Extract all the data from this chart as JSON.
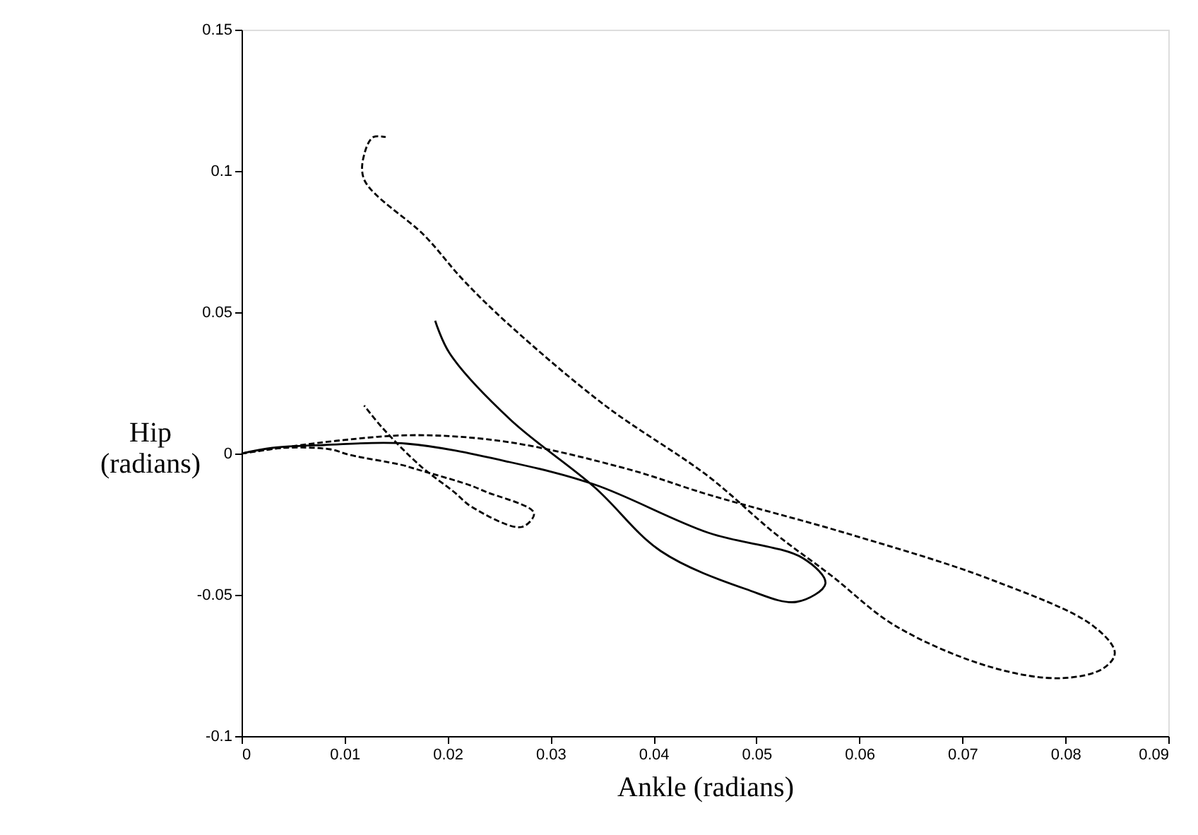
{
  "chart_data": {
    "type": "line",
    "xlabel": "Ankle (radians)",
    "ylabel": "Hip\n(radians)",
    "xlim": [
      0,
      0.09
    ],
    "ylim": [
      -0.1,
      0.15
    ],
    "xticks": [
      0,
      0.01,
      0.02,
      0.03,
      0.04,
      0.05,
      0.06,
      0.07,
      0.08,
      0.09
    ],
    "yticks": [
      -0.1,
      -0.05,
      0,
      0.05,
      0.1,
      0.15
    ],
    "grid": false,
    "marker": "none",
    "series": [
      {
        "color": "#000000",
        "line_style": "solid",
        "x": [
          0,
          0.003,
          0.008,
          0.016,
          0.026,
          0.0343,
          0.0453,
          0.0545,
          0.0567,
          0.0539,
          0.049,
          0.0407,
          0.0343,
          0.0261,
          0.0202,
          0.0188
        ],
        "values": [
          0,
          0.002,
          0.003,
          0.0035,
          -0.003,
          -0.011,
          -0.028,
          -0.037,
          -0.046,
          -0.0525,
          -0.048,
          -0.0345,
          -0.012,
          0.012,
          0.0355,
          0.047
        ]
      },
      {
        "color": "#000000",
        "line_style": "dashed",
        "x": [
          0,
          0.004,
          0.0086,
          0.0105,
          0.0155,
          0.0174,
          0.022,
          0.0237,
          0.0284,
          0.0272,
          0.0224,
          0.0206,
          0.0174,
          0.0137,
          0.0119
        ],
        "values": [
          0,
          0.002,
          0.0015,
          -0.0005,
          -0.004,
          -0.006,
          -0.011,
          -0.0135,
          -0.021,
          -0.026,
          -0.019,
          -0.0135,
          -0.0045,
          0.009,
          0.017
        ]
      },
      {
        "color": "#000000",
        "line_style": "dashed",
        "x": [
          0,
          0.0092,
          0.0169,
          0.026,
          0.0375,
          0.0453,
          0.059,
          0.0727,
          0.0827,
          0.0848,
          0.0837,
          0.0796,
          0.0727,
          0.0635,
          0.0572,
          0.0517,
          0.0453,
          0.0353,
          0.026,
          0.0215,
          0.0178,
          0.0119,
          0.012,
          0.0128,
          0.014
        ],
        "values": [
          0,
          0.0045,
          0.0065,
          0.004,
          -0.0055,
          -0.0145,
          -0.0285,
          -0.0445,
          -0.061,
          -0.0705,
          -0.076,
          -0.0795,
          -0.0755,
          -0.061,
          -0.043,
          -0.028,
          -0.008,
          0.017,
          0.0455,
          0.0615,
          0.077,
          0.097,
          0.107,
          0.112,
          0.112
        ]
      }
    ]
  }
}
